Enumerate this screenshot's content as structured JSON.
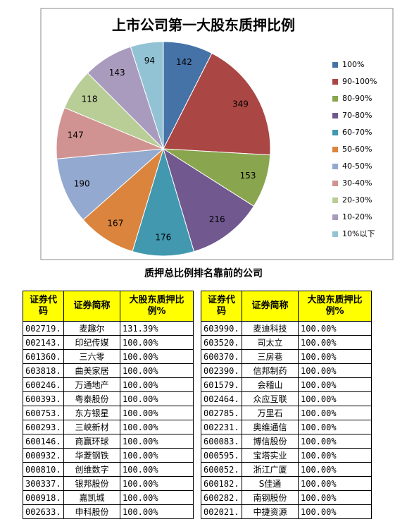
{
  "chart_data": {
    "type": "pie",
    "title": "上市公司第一大股东质押比例",
    "categories": [
      "100%",
      "90-100%",
      "80-90%",
      "70-80%",
      "60-70%",
      "50-60%",
      "40-50%",
      "30-40%",
      "20-30%",
      "10-20%",
      "10%以下"
    ],
    "values": [
      142,
      349,
      153,
      216,
      176,
      167,
      190,
      147,
      118,
      143,
      94
    ],
    "colors": [
      "#4572a7",
      "#aa4643",
      "#89a54e",
      "#71588f",
      "#4198af",
      "#db843d",
      "#93a9cf",
      "#d19392",
      "#b9cd96",
      "#a99bbd",
      "#92c3d5"
    ]
  },
  "tables_title": "质押总比例排名靠前的公司",
  "tables": [
    {
      "headers": [
        "证券代码",
        "证券简称",
        "大股东质押比例%"
      ],
      "rows": [
        [
          "002719.",
          "麦趣尔",
          "131.39%"
        ],
        [
          "002143.",
          "印纪传媒",
          "100.00%"
        ],
        [
          "601360.",
          "三六零",
          "100.00%"
        ],
        [
          "603818.",
          "曲美家居",
          "100.00%"
        ],
        [
          "600246.",
          "万通地产",
          "100.00%"
        ],
        [
          "600393.",
          "粤泰股份",
          "100.00%"
        ],
        [
          "600753.",
          "东方银星",
          "100.00%"
        ],
        [
          "600293.",
          "三峡新材",
          "100.00%"
        ],
        [
          "600146.",
          "商赢环球",
          "100.00%"
        ],
        [
          "000932.",
          "华菱钢铁",
          "100.00%"
        ],
        [
          "000810.",
          "创维数字",
          "100.00%"
        ],
        [
          "300337.",
          "银邦股份",
          "100.00%"
        ],
        [
          "000918.",
          "嘉凯城",
          "100.00%"
        ],
        [
          "002633.",
          "申科股份",
          "100.00%"
        ]
      ]
    },
    {
      "headers": [
        "证券代码",
        "证券简称",
        "大股东质押比例%"
      ],
      "rows": [
        [
          "603990.",
          "麦迪科技",
          "100.00%"
        ],
        [
          "603520.",
          "司太立",
          "100.00%"
        ],
        [
          "600370.",
          "三房巷",
          "100.00%"
        ],
        [
          "002390.",
          "信邦制药",
          "100.00%"
        ],
        [
          "601579.",
          "会稽山",
          "100.00%"
        ],
        [
          "002464.",
          "众应互联",
          "100.00%"
        ],
        [
          "002785.",
          "万里石",
          "100.00%"
        ],
        [
          "002231.",
          "奥维通信",
          "100.00%"
        ],
        [
          "600083.",
          "博信股份",
          "100.00%"
        ],
        [
          "000595.",
          "宝塔实业",
          "100.00%"
        ],
        [
          "600052.",
          "浙江广厦",
          "100.00%"
        ],
        [
          "600182.",
          "S佳通",
          "100.00%"
        ],
        [
          "600282.",
          "南钢股份",
          "100.00%"
        ],
        [
          "002021.",
          "中捷资源",
          "100.00%"
        ]
      ]
    }
  ]
}
